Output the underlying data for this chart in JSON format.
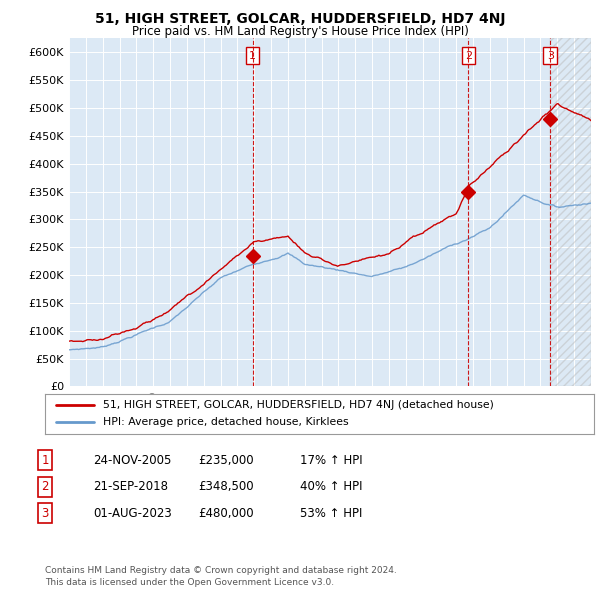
{
  "title": "51, HIGH STREET, GOLCAR, HUDDERSFIELD, HD7 4NJ",
  "subtitle": "Price paid vs. HM Land Registry's House Price Index (HPI)",
  "ylim": [
    0,
    625000
  ],
  "yticks": [
    0,
    50000,
    100000,
    150000,
    200000,
    250000,
    300000,
    350000,
    400000,
    450000,
    500000,
    550000,
    600000
  ],
  "ytick_labels": [
    "£0",
    "£50K",
    "£100K",
    "£150K",
    "£200K",
    "£250K",
    "£300K",
    "£350K",
    "£400K",
    "£450K",
    "£500K",
    "£550K",
    "£600K"
  ],
  "background_color": "#ffffff",
  "plot_bg_color": "#dce9f5",
  "grid_color": "#ffffff",
  "sale_color": "#cc0000",
  "hpi_color": "#6699cc",
  "sale_label": "51, HIGH STREET, GOLCAR, HUDDERSFIELD, HD7 4NJ (detached house)",
  "hpi_label": "HPI: Average price, detached house, Kirklees",
  "sale_years": [
    2005.9,
    2018.72,
    2023.58
  ],
  "sale_prices": [
    235000,
    348500,
    480000
  ],
  "transaction_nums": [
    1,
    2,
    3
  ],
  "transaction_dates": [
    "24-NOV-2005",
    "21-SEP-2018",
    "01-AUG-2023"
  ],
  "transaction_pcts": [
    "17% ↑ HPI",
    "40% ↑ HPI",
    "53% ↑ HPI"
  ],
  "footer": "Contains HM Land Registry data © Crown copyright and database right 2024.\nThis data is licensed under the Open Government Licence v3.0.",
  "xlim_start": 1995,
  "xlim_end": 2026
}
